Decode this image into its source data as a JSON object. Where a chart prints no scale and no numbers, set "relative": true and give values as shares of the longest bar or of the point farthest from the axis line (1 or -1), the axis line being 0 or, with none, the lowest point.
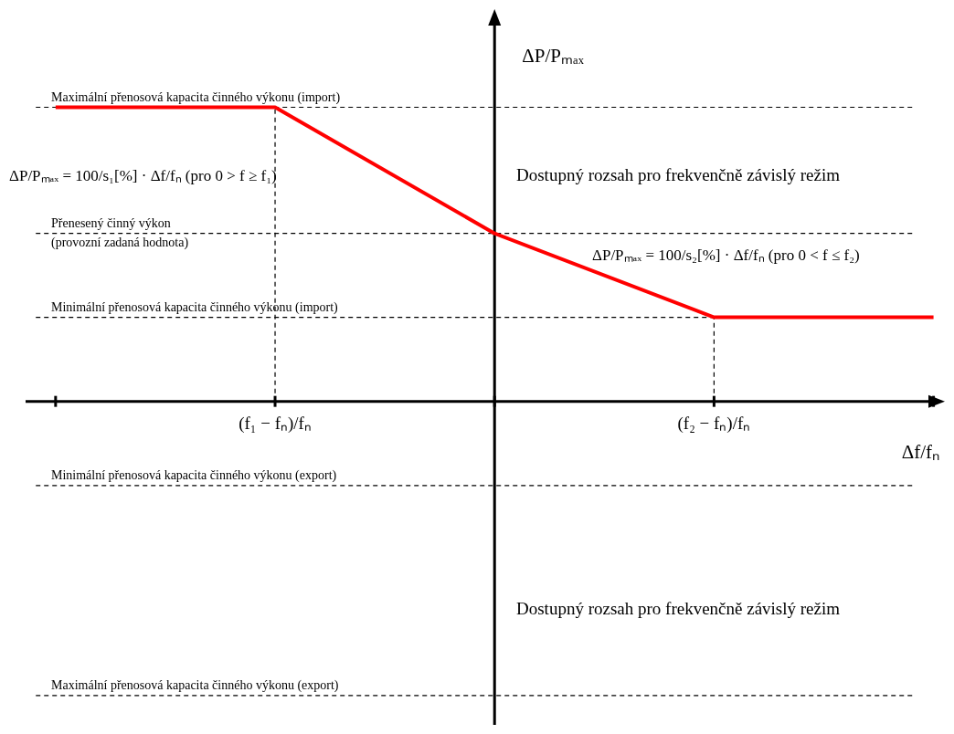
{
  "chart_data": {
    "type": "line",
    "relative": true,
    "xlabel": "Δf/fₙ",
    "ylabel": "ΔP/Pₘₐₓ",
    "categories": [
      null,
      "(f₁ − fₙ)/fₙ",
      null,
      "(f₂ − fₙ)/fₙ",
      null
    ],
    "series": [
      {
        "color": "#ff0000",
        "values": [
          1,
          1,
          0.571,
          0.286,
          0.286
        ]
      }
    ],
    "ref_lines": [
      {
        "axis": "y",
        "value": 1,
        "label": "Maximální přenosová kapacita činného výkonu (import)",
        "color": "#000000",
        "line_style": "dashed"
      },
      {
        "axis": "y",
        "value": 0.571,
        "label": "Přenesený činný výkon\n(provozní zadaná hodnota)",
        "color": "#000000",
        "line_style": "dashed"
      },
      {
        "axis": "y",
        "value": 0.286,
        "label": "Minimální přenosová kapacita činného výkonu (import)",
        "color": "#000000",
        "line_style": "dashed"
      },
      {
        "axis": "y",
        "value": -0.286,
        "label": "Minimální přenosová kapacita činného výkonu (export)",
        "color": "#000000",
        "line_style": "dashed"
      },
      {
        "axis": "y",
        "value": -1,
        "label": "Maximální přenosová kapacita činného výkonu (export)",
        "color": "#000000",
        "line_style": "dashed"
      },
      {
        "axis": "x",
        "value": "(f₁ − fₙ)/fₙ",
        "color": "#000000",
        "line_style": "dashed"
      },
      {
        "axis": "x",
        "value": "(f₂ − fₙ)/fₙ",
        "color": "#000000",
        "line_style": "dashed"
      }
    ],
    "annotations": [
      "ΔP/Pₘₐₓ = 100/s₁[%] · Δf/fₙ (pro 0 > f ≥ f₁)",
      "ΔP/Pₘₐₓ = 100/s₂[%] · Δf/fₙ (pro 0 < f ≤ f₂)",
      "Dostupný rozsah pro frekvenčně závislý režim",
      "Dostupný rozsah pro frekvenčně závislý režim"
    ]
  }
}
